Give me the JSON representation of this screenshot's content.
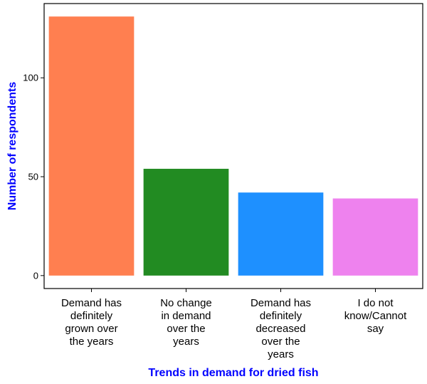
{
  "chart_data": {
    "type": "bar",
    "categories": [
      "Demand has definitely grown over the years",
      "No change in demand over the years",
      "Demand has definitely decreased over the years",
      "I do not know/Cannot say"
    ],
    "category_lines": [
      [
        "Demand has",
        "definitely",
        "grown over",
        "the years"
      ],
      [
        "No change",
        "in demand",
        "over the",
        "years"
      ],
      [
        "Demand has",
        "definitely",
        "decreased",
        "over the",
        "years"
      ],
      [
        "I do not",
        "know/Cannot",
        "say"
      ]
    ],
    "values": [
      131,
      54,
      42,
      39
    ],
    "colors": [
      "#FF7F50",
      "#228B22",
      "#1E90FF",
      "#EE82EE"
    ],
    "xlabel": "Trends in demand for dried fish",
    "ylabel": "Number of respondents",
    "axis_title_color": "#0000FF",
    "ylim": [
      -6.55,
      137.55
    ],
    "yticks": [
      0,
      50,
      100
    ],
    "grid": false,
    "legend": "none"
  }
}
